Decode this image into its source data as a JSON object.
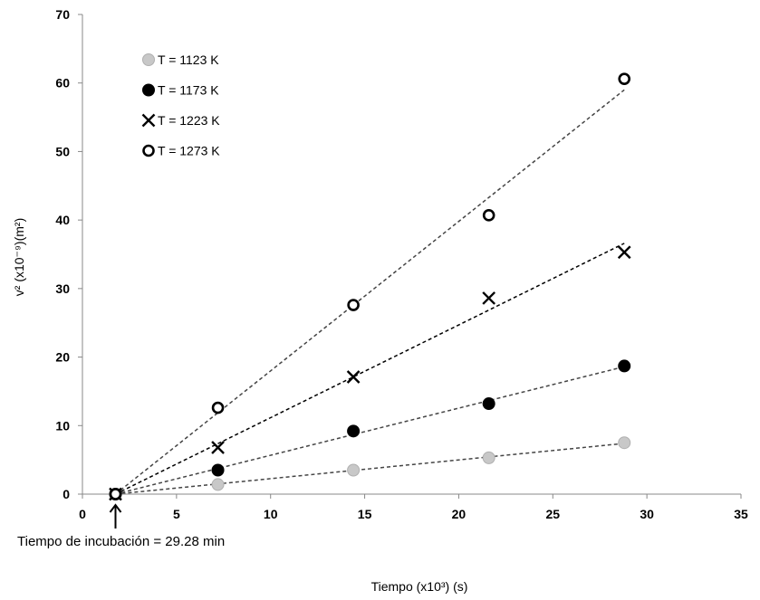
{
  "chart_data": {
    "type": "scatter",
    "xlabel": "Tiempo (x10³)  (s)",
    "ylabel": "v² (x10⁻⁹)(m²)",
    "xlim": [
      0,
      35
    ],
    "ylim": [
      0,
      70
    ],
    "xticks": [
      0,
      5,
      10,
      15,
      20,
      25,
      30,
      35
    ],
    "yticks": [
      0,
      10,
      20,
      30,
      40,
      50,
      60,
      70
    ],
    "grid": false,
    "legend_position": "top-left",
    "annotation": "Tiempo de incubación =  29.28 min",
    "annotation_x": 1.757,
    "series": [
      {
        "name": "T = 1123 K",
        "marker": "circle-filled",
        "color": "#c8c8c8",
        "x": [
          1.757,
          7.2,
          14.4,
          21.6,
          28.8
        ],
        "y": [
          0.0,
          1.4,
          3.5,
          5.3,
          7.5
        ],
        "trend": {
          "x": [
            1.757,
            28.8
          ],
          "y": [
            0.0,
            7.4
          ]
        }
      },
      {
        "name": "T = 1173 K",
        "marker": "circle-filled",
        "color": "#000000",
        "x": [
          1.757,
          7.2,
          14.4,
          21.6,
          28.8
        ],
        "y": [
          0.0,
          3.5,
          9.2,
          13.2,
          18.7
        ],
        "trend": {
          "x": [
            1.757,
            28.8
          ],
          "y": [
            0.0,
            18.6
          ]
        }
      },
      {
        "name": "T = 1223 K",
        "marker": "x",
        "color": "#000000",
        "x": [
          1.757,
          7.2,
          14.4,
          21.6,
          28.8
        ],
        "y": [
          0.0,
          6.8,
          17.1,
          28.6,
          35.3
        ],
        "trend": {
          "x": [
            1.757,
            28.8
          ],
          "y": [
            0.0,
            36.6
          ]
        }
      },
      {
        "name": "T = 1273 K",
        "marker": "circle-open",
        "color": "#000000",
        "x": [
          1.757,
          7.2,
          14.4,
          21.6,
          28.8
        ],
        "y": [
          0.0,
          12.6,
          27.6,
          40.7,
          60.6
        ],
        "trend": {
          "x": [
            1.757,
            28.8
          ],
          "y": [
            0.0,
            59.0
          ]
        }
      }
    ]
  }
}
